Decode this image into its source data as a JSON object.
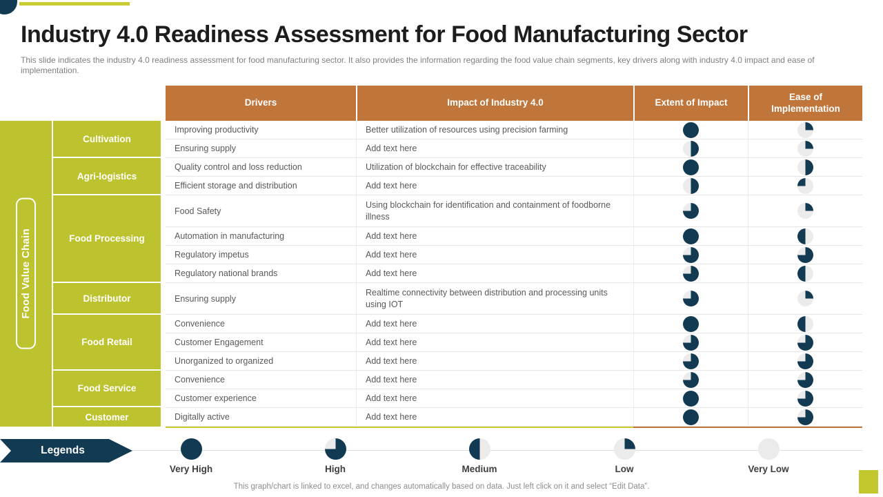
{
  "slide": {
    "title": "Industry 4.0 Readiness Assessment for Food Manufacturing Sector",
    "subtitle": "This slide indicates the industry 4.0 readiness assessment for food manufacturing sector. It also provides the information regarding the food value chain segments, key drivers along with industry 4.0 impact and ease of implementation.",
    "footer": "This graph/chart is linked to excel, and changes automatically based on data. Just left click on it and select “Edit Data”."
  },
  "colors": {
    "navy": "#123A52",
    "green": "#BDC32F",
    "accent_green": "#C8CB32",
    "orange": "#C0763B",
    "ball_empty": "#EBEBEB"
  },
  "table": {
    "side_label": "Food Value Chain",
    "headers": {
      "drivers": "Drivers",
      "impact": "Impact of Industry 4.0",
      "extent": "Extent of Impact",
      "ease": "Ease of Implementation"
    },
    "groups": [
      {
        "label": "Cultivation"
      },
      {
        "label": "Agri-logistics"
      },
      {
        "label": "Food Processing"
      },
      {
        "label": "Distributor"
      },
      {
        "label": "Food Retail"
      },
      {
        "label": "Food Service"
      },
      {
        "label": "Customer"
      }
    ],
    "rows": [
      {
        "group": "Cultivation",
        "driver": "Improving productivity",
        "impact": "Better utilization of resources using precision farming",
        "extent": "very-high",
        "ease": "low"
      },
      {
        "group": "Cultivation",
        "driver": "Ensuring supply",
        "impact": "Add text here",
        "extent": "medium-right",
        "ease": "low"
      },
      {
        "group": "Agri-logistics",
        "driver": "Quality control and loss reduction",
        "impact": "Utilization of blockchain for effective traceability",
        "extent": "very-high",
        "ease": "medium-right"
      },
      {
        "group": "Agri-logistics",
        "driver": "Efficient storage and distribution",
        "impact": "Add text here",
        "extent": "medium-right",
        "ease": "low-left"
      },
      {
        "group": "Food Processing",
        "driver": "Food Safety",
        "impact": "Using blockchain for identification and containment of foodborne illness",
        "extent": "high",
        "ease": "low"
      },
      {
        "group": "Food Processing",
        "driver": "Automation in manufacturing",
        "impact": "Add text here",
        "extent": "very-high",
        "ease": "medium-left"
      },
      {
        "group": "Food Processing",
        "driver": "Regulatory impetus",
        "impact": "Add text here",
        "extent": "high",
        "ease": "high"
      },
      {
        "group": "Food Processing",
        "driver": "Regulatory national brands",
        "impact": "Add text here",
        "extent": "high",
        "ease": "medium-left"
      },
      {
        "group": "Distributor",
        "driver": "Ensuring supply",
        "impact": "Realtime connectivity between distribution and processing units using IOT",
        "extent": "high",
        "ease": "low"
      },
      {
        "group": "Food Retail",
        "driver": "Convenience",
        "impact": "Add text here",
        "extent": "very-high",
        "ease": "medium-left"
      },
      {
        "group": "Food Retail",
        "driver": "Customer Engagement",
        "impact": "Add text here",
        "extent": "high",
        "ease": "high"
      },
      {
        "group": "Food Retail",
        "driver": "Unorganized to organized",
        "impact": "Add text here",
        "extent": "high",
        "ease": "high"
      },
      {
        "group": "Food Service",
        "driver": "Convenience",
        "impact": "Add text here",
        "extent": "high",
        "ease": "high"
      },
      {
        "group": "Food Service",
        "driver": "Customer experience",
        "impact": "Add text here",
        "extent": "very-high",
        "ease": "high"
      },
      {
        "group": "Customer",
        "driver": "Digitally active",
        "impact": "Add text here",
        "extent": "very-high",
        "ease": "high"
      }
    ]
  },
  "legend": {
    "banner": "Legends",
    "items": [
      {
        "label": "Very High",
        "ball": "very-high"
      },
      {
        "label": "High",
        "ball": "high"
      },
      {
        "label": "Medium",
        "ball": "medium-left"
      },
      {
        "label": "Low",
        "ball": "low"
      },
      {
        "label": "Very Low",
        "ball": "very-low"
      }
    ]
  }
}
